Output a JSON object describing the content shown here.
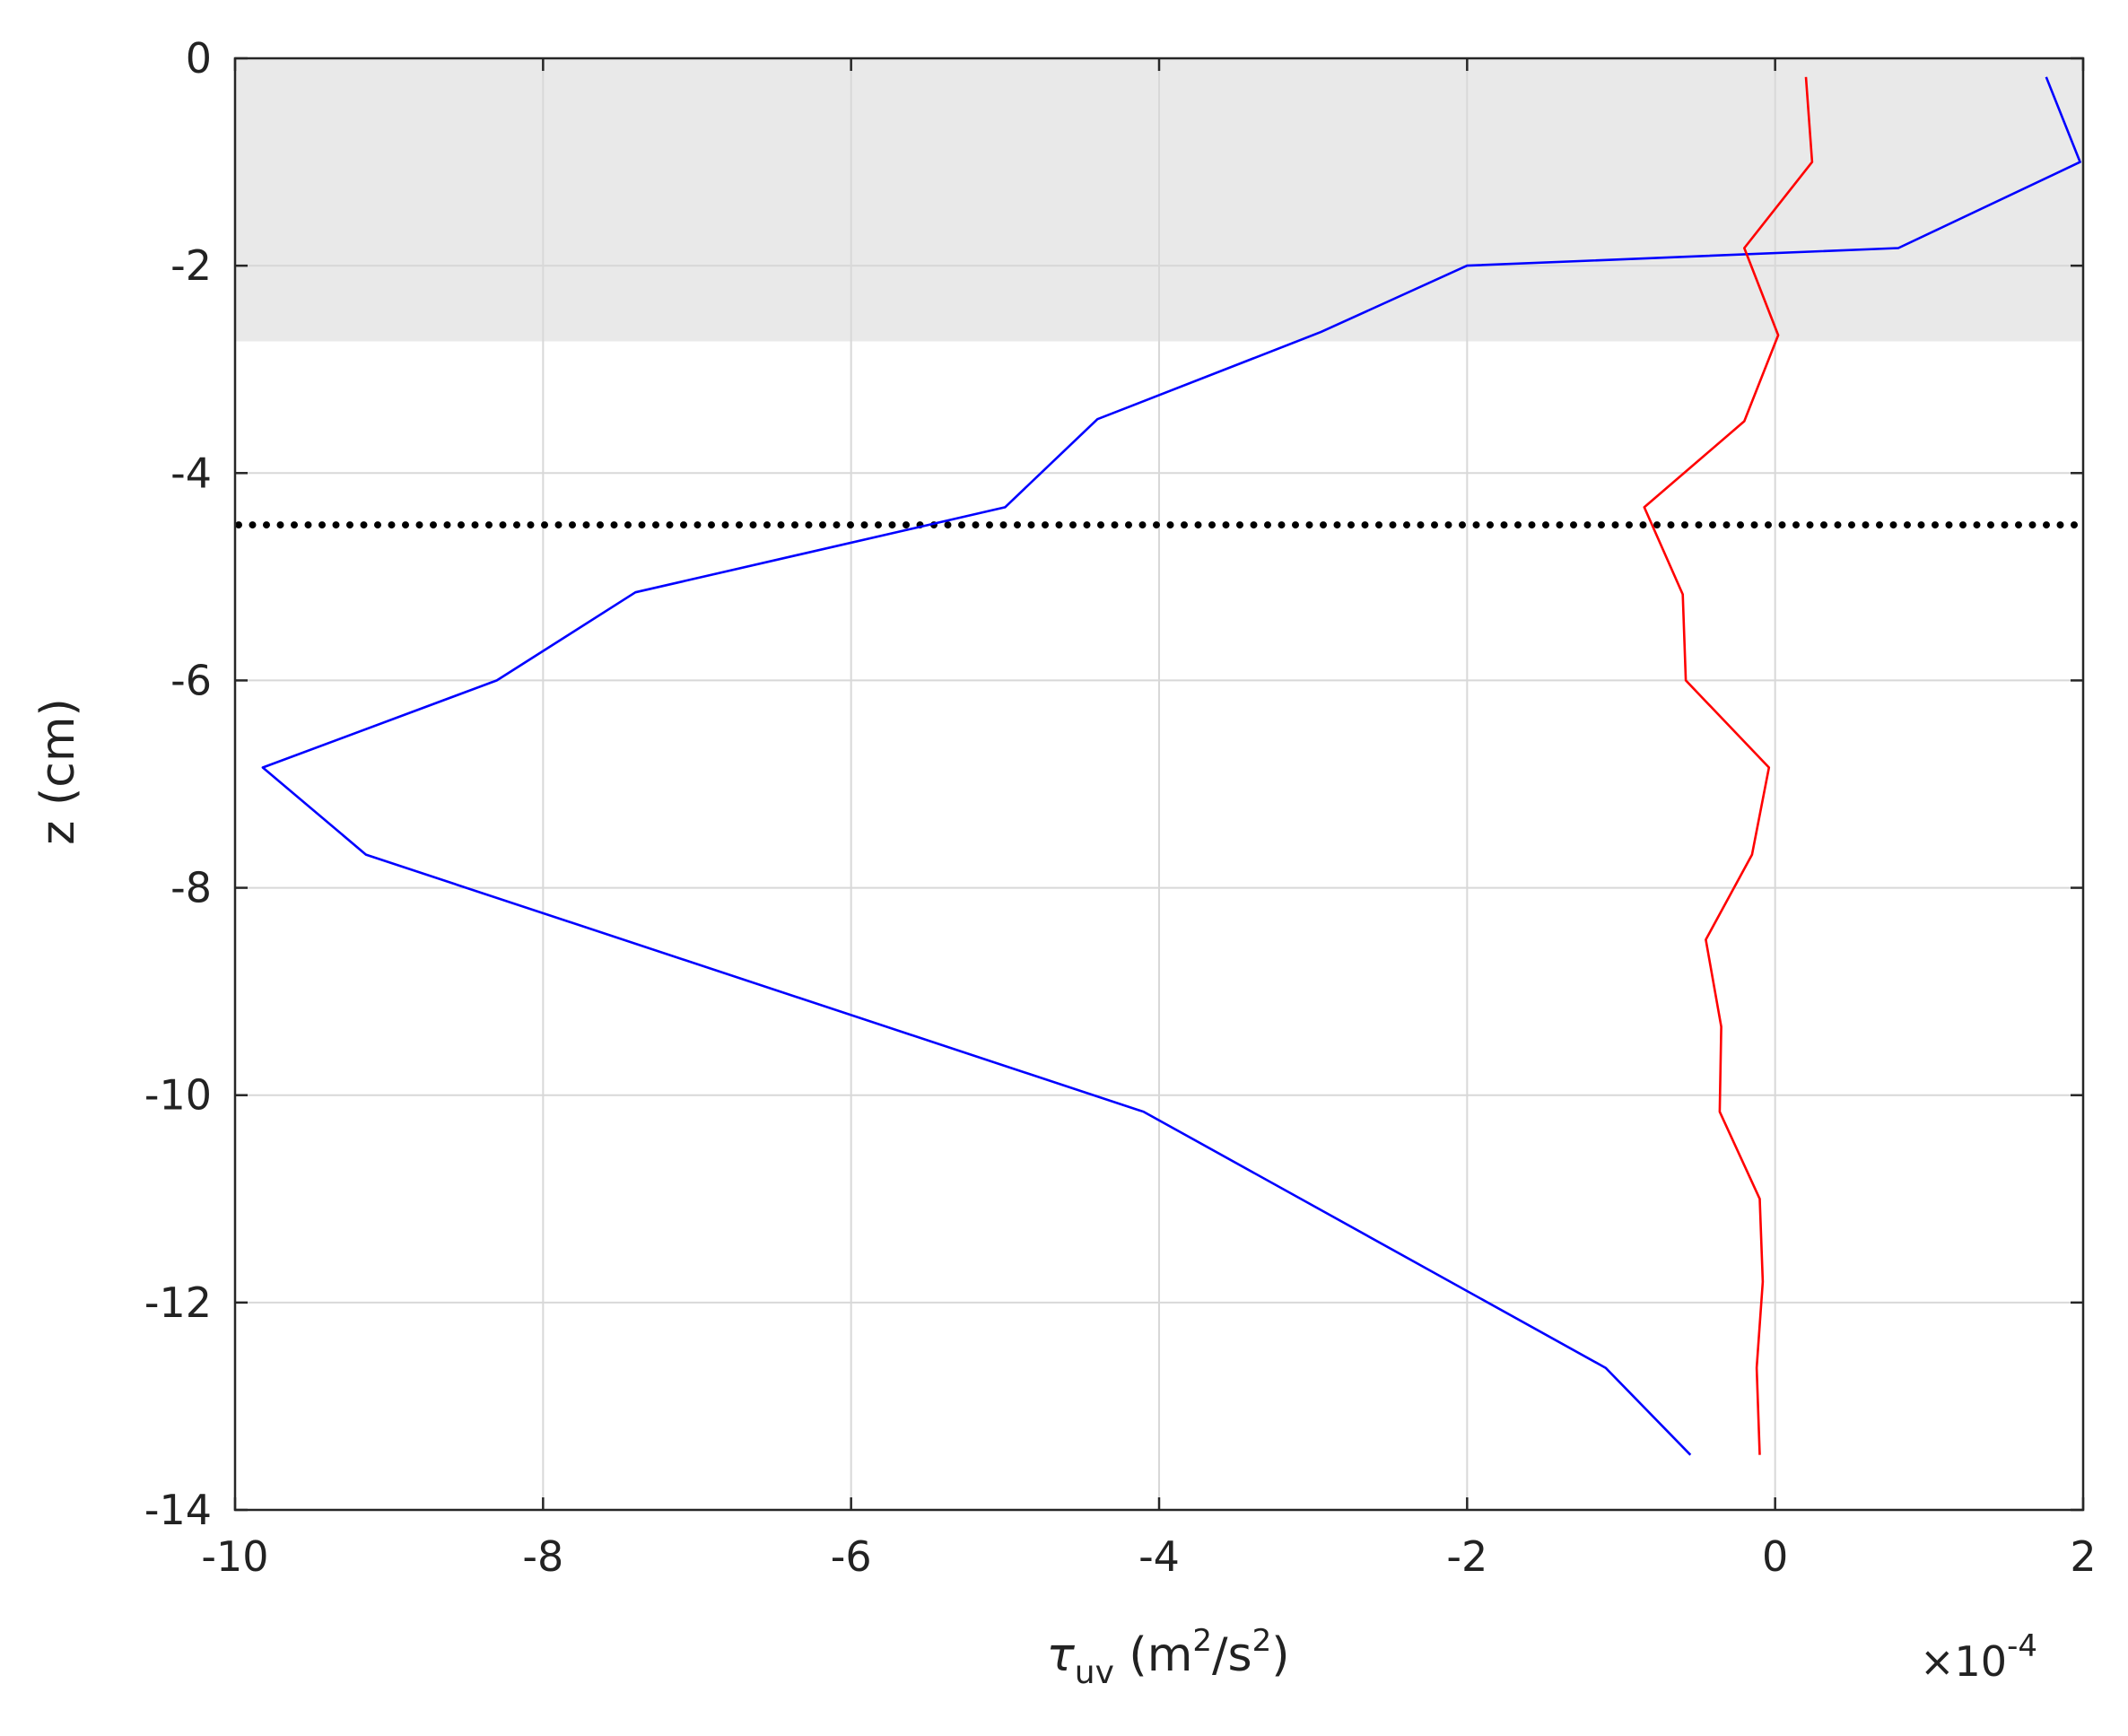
{
  "chart_data": {
    "type": "line",
    "xlabel": {
      "symbol": "τ",
      "subscript": "uv",
      "unit_prefix": " (m",
      "unit_sup": "2",
      "unit_mid": "/s",
      "unit_sup2": "2",
      "unit_suffix": ")"
    },
    "ylabel": "z (cm)",
    "x_exponent": {
      "base": "×10",
      "power": "-4"
    },
    "xlim": [
      -10,
      2
    ],
    "ylim": [
      -14,
      0
    ],
    "x_ticks": [
      -10,
      -8,
      -6,
      -4,
      -2,
      0,
      2
    ],
    "y_ticks": [
      0,
      -2,
      -4,
      -6,
      -8,
      -10,
      -12,
      -14
    ],
    "x_tick_labels": [
      "-10",
      "-8",
      "-6",
      "-4",
      "-2",
      "0",
      "2"
    ],
    "y_tick_labels": [
      "0",
      "-2",
      "-4",
      "-6",
      "-8",
      "-10",
      "-12",
      "-14"
    ],
    "grid": true,
    "shaded_band": {
      "z_top": 0,
      "z_bottom": -2.73,
      "color": "#e9e9e9"
    },
    "reference_line": {
      "z": -4.5,
      "style": "dotted",
      "color": "#000000"
    },
    "series": [
      {
        "color": "#0000ff",
        "points": [
          [
            1.76,
            -0.18
          ],
          [
            1.98,
            -1.0
          ],
          [
            0.8,
            -1.83
          ],
          [
            -2.0,
            -2.0
          ],
          [
            -2.95,
            -2.64
          ],
          [
            -4.4,
            -3.48
          ],
          [
            -5.0,
            -4.33
          ],
          [
            -7.4,
            -5.15
          ],
          [
            -8.3,
            -6.0
          ],
          [
            -9.82,
            -6.84
          ],
          [
            -9.15,
            -7.68
          ],
          [
            -4.1,
            -10.16
          ],
          [
            -1.1,
            -12.63
          ],
          [
            -0.55,
            -13.47
          ]
        ]
      },
      {
        "color": "#ff0000",
        "points": [
          [
            0.2,
            -0.18
          ],
          [
            0.24,
            -1.0
          ],
          [
            -0.2,
            -1.83
          ],
          [
            0.02,
            -2.67
          ],
          [
            -0.2,
            -3.5
          ],
          [
            -0.85,
            -4.33
          ],
          [
            -0.6,
            -5.17
          ],
          [
            -0.58,
            -6.0
          ],
          [
            -0.04,
            -6.84
          ],
          [
            -0.15,
            -7.68
          ],
          [
            -0.45,
            -8.5
          ],
          [
            -0.35,
            -9.34
          ],
          [
            -0.36,
            -10.16
          ],
          [
            -0.1,
            -11.0
          ],
          [
            -0.08,
            -11.8
          ],
          [
            -0.12,
            -12.63
          ],
          [
            -0.1,
            -13.47
          ]
        ]
      }
    ]
  }
}
